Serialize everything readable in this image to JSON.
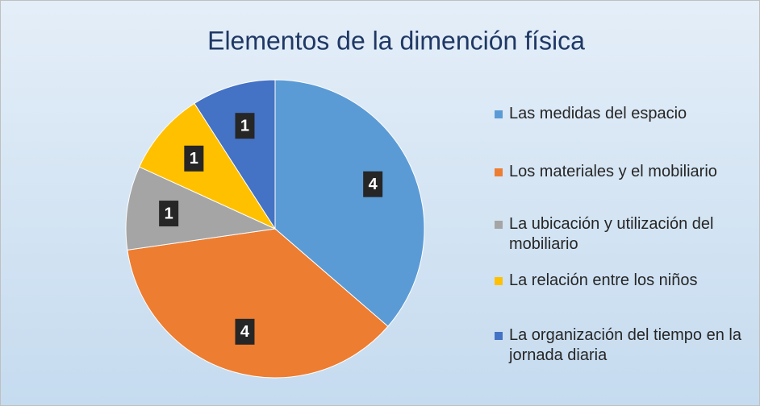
{
  "chart_data": {
    "type": "pie",
    "title": "Elementos de la dimención física",
    "categories": [
      "Las medidas del espacio",
      "Los materiales y el mobiliario",
      "La ubicación y utilización del mobiliario",
      "La relación entre los niños",
      "La organización del tiempo en la jornada diaria"
    ],
    "values": [
      4,
      4,
      1,
      1,
      1
    ],
    "colors": [
      "#5b9bd5",
      "#ed7d31",
      "#a5a5a5",
      "#ffc000",
      "#4472c4"
    ],
    "legend": "right"
  }
}
